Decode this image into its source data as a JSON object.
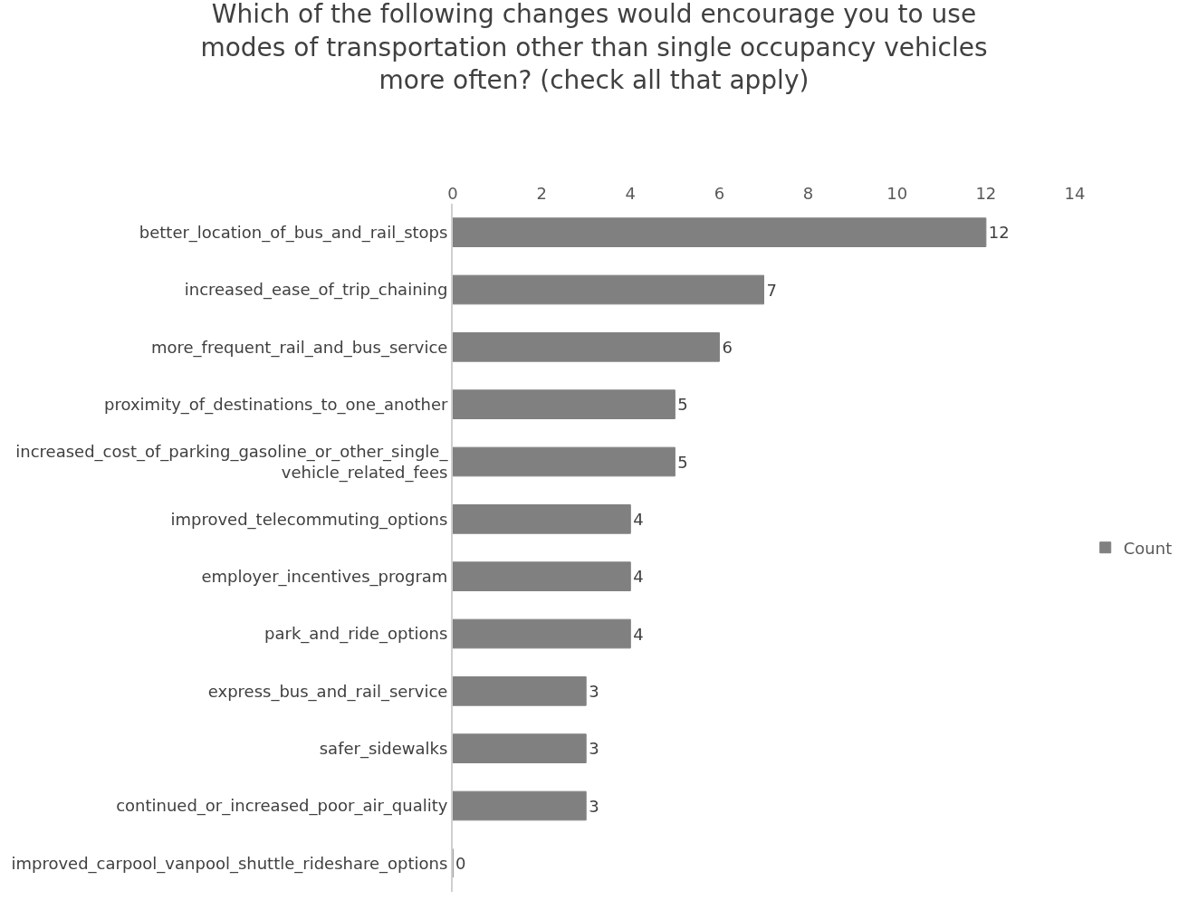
{
  "chart_data": {
    "type": "bar",
    "orientation": "horizontal",
    "title": "Which of the following changes would encourage you to use modes of transportation other than single occupancy vehicles more often? (check all that apply)",
    "categories": [
      "better_location_of_bus_and_rail_stops",
      "increased_ease_of_trip_chaining",
      "more_frequent_rail_and_bus_service",
      "proximity_of_destinations_to_one_another",
      "increased_cost_of_parking_gasoline_or_other_single_vehicle_related_fees",
      "improved_telecommuting_options",
      "employer_incentives_program",
      "park_and_ride_options",
      "express_bus_and_rail_service",
      "safer_sidewalks",
      "continued_or_increased_poor_air_quality",
      "improved_carpool_vanpool_shuttle_rideshare_options"
    ],
    "series": [
      {
        "name": "Count",
        "color": "#808080",
        "values": [
          12,
          7,
          6,
          5,
          5,
          4,
          4,
          4,
          3,
          3,
          3,
          0
        ]
      }
    ],
    "xlim": [
      0,
      14
    ],
    "xticks": [
      0,
      2,
      4,
      6,
      8,
      10,
      12,
      14
    ],
    "data_labels": true,
    "legend": "right"
  }
}
